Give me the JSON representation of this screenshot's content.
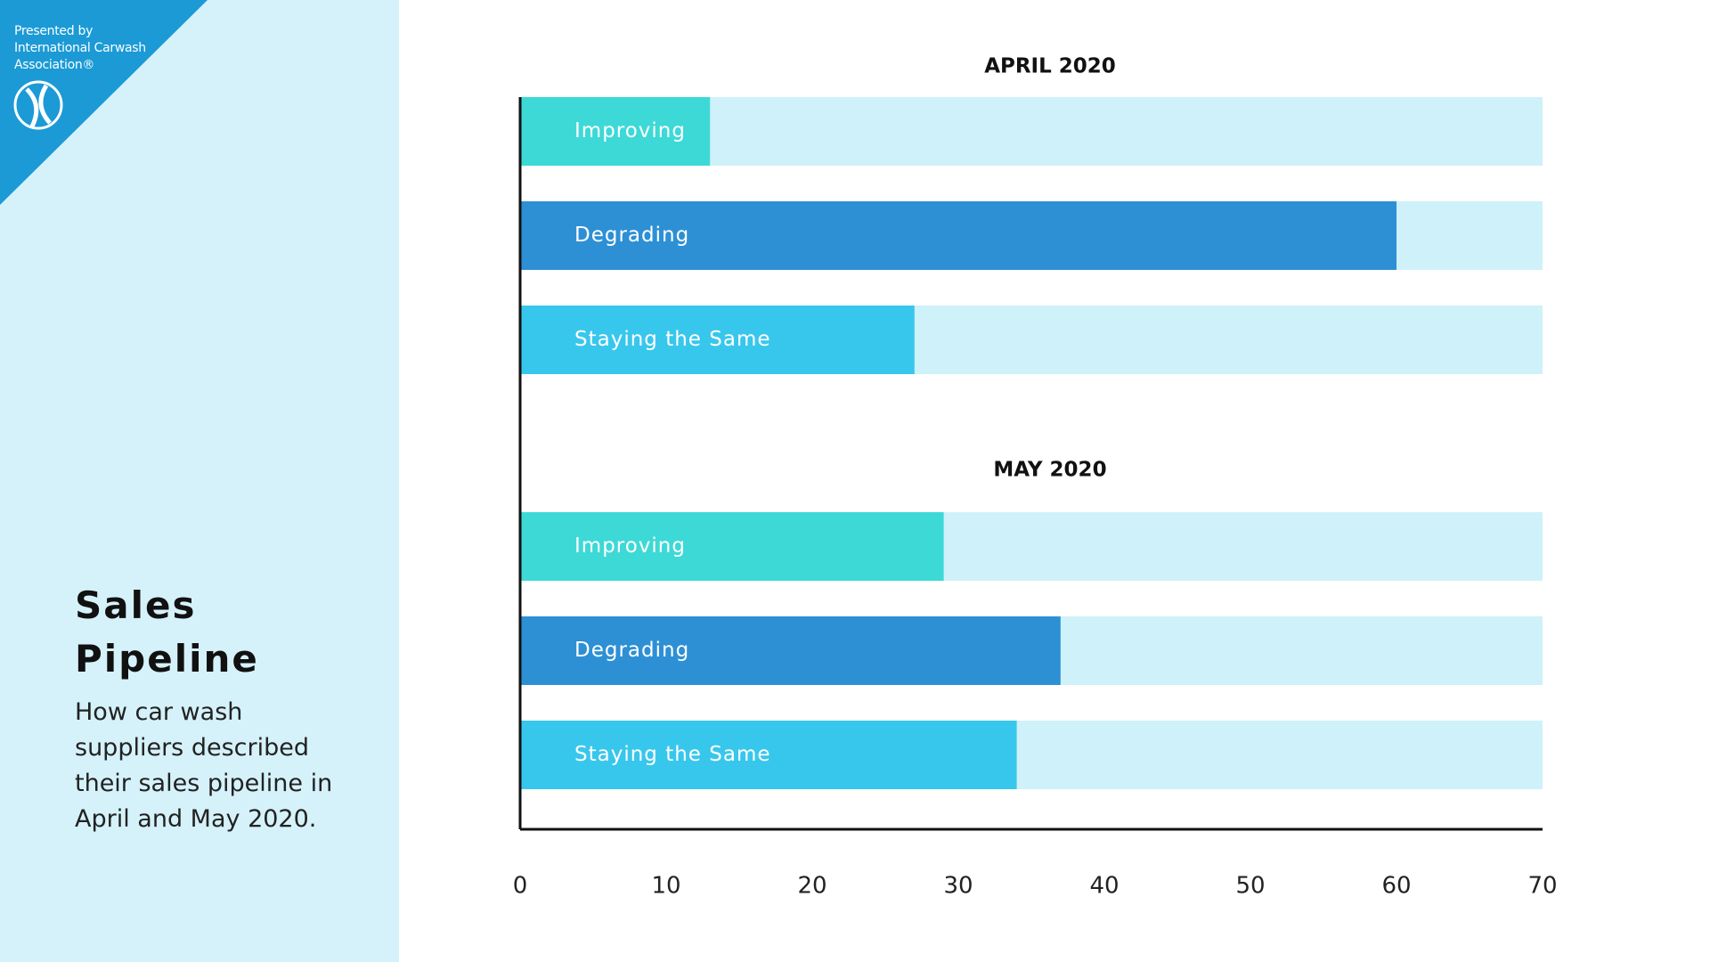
{
  "sidebar": {
    "presenter": [
      "Presented by",
      "International Carwash",
      "Association®"
    ],
    "title": "Sales Pipeline",
    "description": "How car wash suppliers described their sales pipeline in April and May 2020."
  },
  "chart_data": {
    "type": "bar",
    "orientation": "horizontal",
    "panels": [
      {
        "title": "APRIL 2020",
        "categories": [
          "Improving",
          "Degrading",
          "Staying the Same"
        ],
        "values": [
          13,
          60,
          27
        ]
      },
      {
        "title": "MAY 2020",
        "categories": [
          "Improving",
          "Degrading",
          "Staying the Same"
        ],
        "values": [
          29,
          37,
          34
        ]
      }
    ],
    "colors": [
      "#3dd9d6",
      "#2d90d5",
      "#38c7ec"
    ],
    "track_color": "#cff1f9",
    "xlim": [
      0,
      70
    ],
    "xticks": [
      0,
      10,
      20,
      30,
      40,
      50,
      60,
      70
    ]
  }
}
